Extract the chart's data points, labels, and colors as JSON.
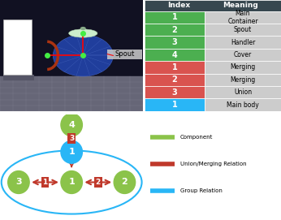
{
  "table_headers": [
    "Index",
    "Meaning"
  ],
  "table_rows": [
    {
      "index": "1",
      "meaning": "Main\nContainer",
      "color": "#4caf50"
    },
    {
      "index": "2",
      "meaning": "Spout",
      "color": "#4caf50"
    },
    {
      "index": "3",
      "meaning": "Handler",
      "color": "#4caf50"
    },
    {
      "index": "4",
      "meaning": "Cover",
      "color": "#4caf50"
    },
    {
      "index": "1",
      "meaning": "Merging",
      "color": "#d9534f"
    },
    {
      "index": "2",
      "meaning": "Merging",
      "color": "#d9534f"
    },
    {
      "index": "3",
      "meaning": "Union",
      "color": "#d9534f"
    },
    {
      "index": "1",
      "meaning": "Main body",
      "color": "#29b6f6"
    }
  ],
  "header_bg": "#37474f",
  "header_fg": "#ffffff",
  "meaning_bg": "#cccccc",
  "node_color_green": "#8bc34a",
  "node_color_blue": "#29b6f6",
  "arrow_color": "#c0392b",
  "group_ellipse_color": "#29b6f6",
  "legend_items": [
    {
      "color": "#8bc34a",
      "label": "Component"
    },
    {
      "color": "#c0392b",
      "label": "Union/Merging Relation"
    },
    {
      "color": "#29b6f6",
      "label": "Group Relation"
    }
  ],
  "spout_label": "Spout",
  "background_color": "#ffffff",
  "teapot_bg": "#1a1a1a",
  "grid_color": "#555566",
  "floor_color": "#888888"
}
